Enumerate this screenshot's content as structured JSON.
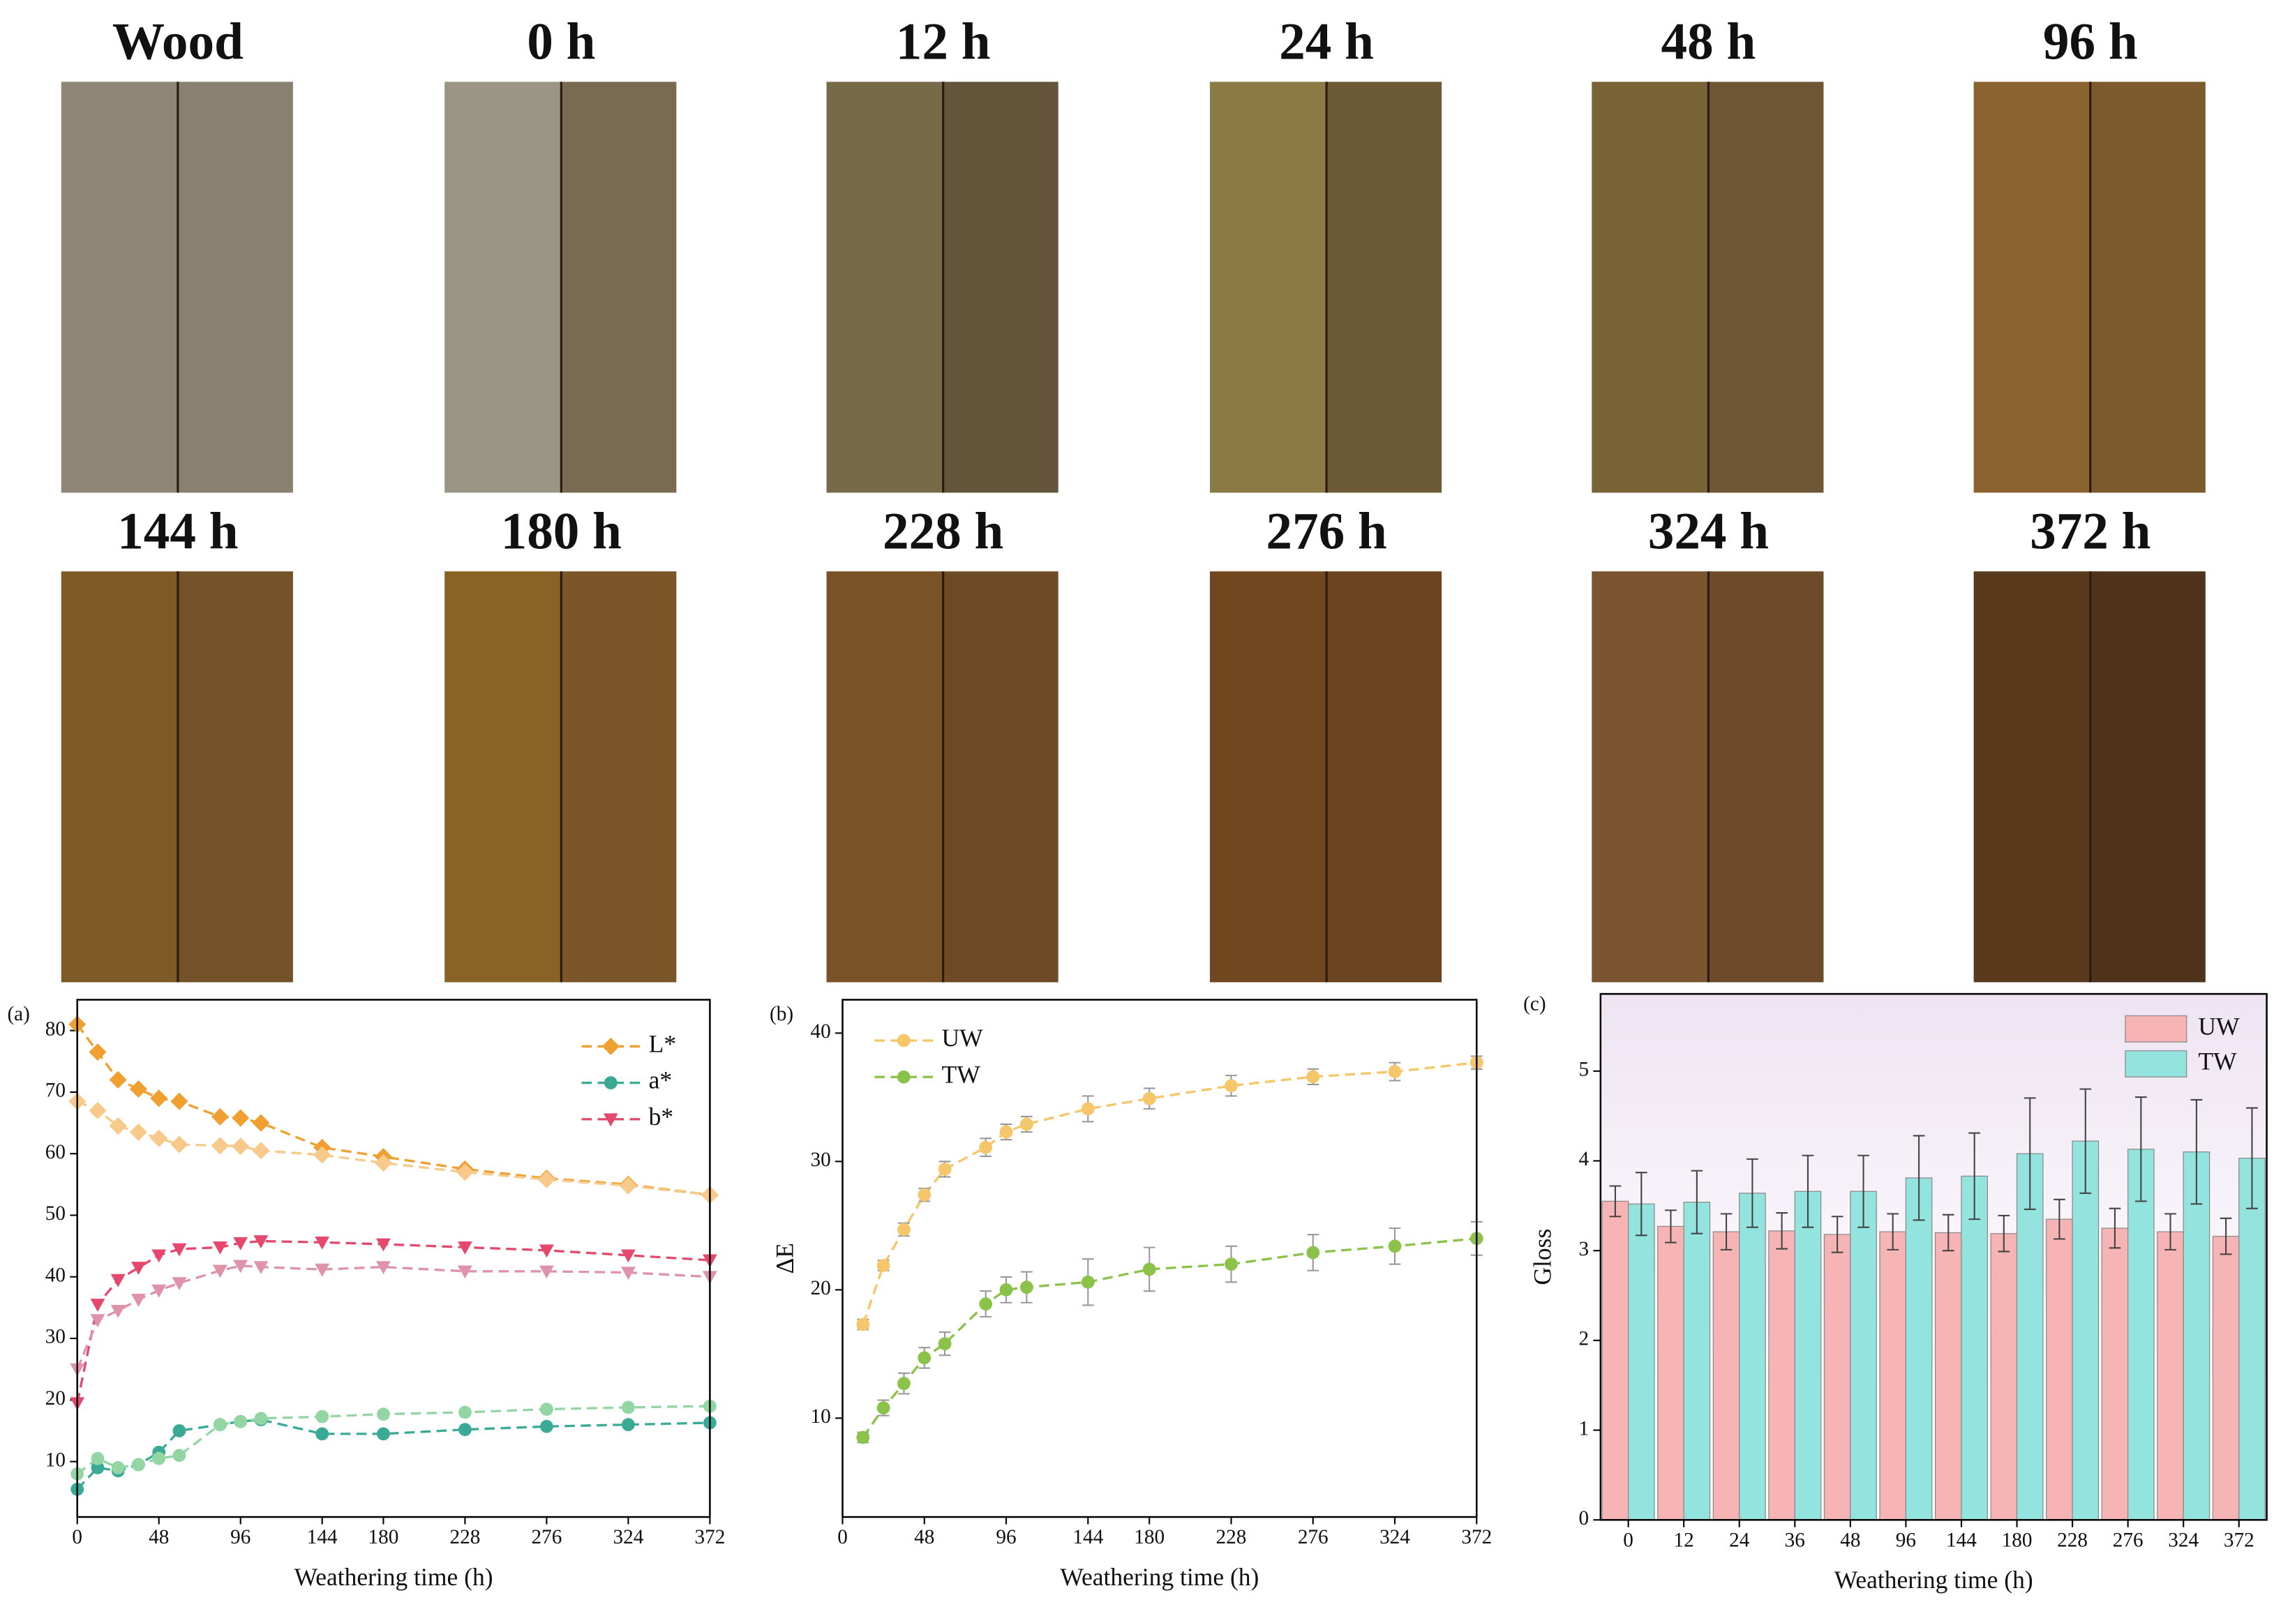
{
  "samples": {
    "labels": [
      "Wood",
      "0 h",
      "12 h",
      "24 h",
      "48 h",
      "96 h",
      "144 h",
      "180 h",
      "228 h",
      "276 h",
      "324 h",
      "372 h"
    ]
  },
  "chart_data": [
    {
      "type": "line",
      "label": "(a)",
      "xlabel": "Weathering time (h)",
      "x": [
        0,
        12,
        24,
        36,
        48,
        60,
        84,
        96,
        108,
        144,
        180,
        228,
        276,
        324,
        372
      ],
      "xlim": [
        0,
        372
      ],
      "xticks": [
        0,
        48,
        96,
        144,
        180,
        228,
        276,
        324,
        372
      ],
      "ylim": [
        1,
        85
      ],
      "yticks": [
        10,
        20,
        30,
        40,
        50,
        60,
        70,
        80
      ],
      "legend": "upper right",
      "series": [
        {
          "name": "L*",
          "color": "#f0a030",
          "marker": "diamond",
          "values": [
            81,
            76.5,
            72,
            70.5,
            69,
            68.5,
            66,
            65.8,
            65,
            61,
            59.5,
            57.5,
            56,
            55,
            53.3
          ]
        },
        {
          "name": "a*",
          "color": "#3aaa96",
          "marker": "circle",
          "values": [
            5.5,
            9,
            8.5,
            9.5,
            11.5,
            15,
            16,
            16.5,
            16.8,
            14.5,
            14.5,
            15.2,
            15.7,
            16,
            16.3
          ]
        },
        {
          "name": "b*",
          "color": "#e4486c",
          "marker": "triangle",
          "values": [
            19.5,
            35.5,
            39.5,
            41.5,
            43.5,
            44.5,
            44.8,
            45.5,
            45.8,
            45.6,
            45.3,
            44.8,
            44.3,
            43.5,
            42.7
          ]
        },
        {
          "color": "#f7c98a",
          "marker": "diamond",
          "values": [
            68.5,
            67,
            64.5,
            63.5,
            62.5,
            61.5,
            61.3,
            61.2,
            60.5,
            59.8,
            58.5,
            57,
            55.8,
            54.8,
            53.3
          ]
        },
        {
          "color": "#93d6a4",
          "marker": "circle",
          "values": [
            8,
            10.5,
            9,
            9.5,
            10.5,
            11,
            16,
            16.5,
            17,
            17.3,
            17.7,
            18,
            18.5,
            18.8,
            19
          ]
        },
        {
          "color": "#de93a8",
          "marker": "triangle",
          "values": [
            25,
            33,
            34.5,
            36.3,
            37.8,
            39,
            41,
            41.8,
            41.6,
            41.2,
            41.6,
            40.9,
            40.9,
            40.7,
            40
          ]
        }
      ]
    },
    {
      "type": "line",
      "label": "(b)",
      "xlabel": "Weathering time (h)",
      "ylabel": "ΔE",
      "x": [
        12,
        24,
        36,
        48,
        60,
        84,
        96,
        108,
        144,
        180,
        228,
        276,
        324,
        372
      ],
      "xlim": [
        0,
        372
      ],
      "xticks": [
        0,
        48,
        96,
        144,
        180,
        228,
        276,
        324,
        372
      ],
      "ylim": [
        2.3,
        42.6
      ],
      "yticks": [
        10,
        20,
        30,
        40
      ],
      "legend": "upper left",
      "series": [
        {
          "name": "UW",
          "color": "#f5c66a",
          "marker": "circle",
          "values": [
            17.3,
            21.9,
            24.7,
            27.4,
            29.4,
            31.1,
            32.3,
            32.9,
            34.1,
            34.9,
            35.9,
            36.6,
            37.0,
            37.7
          ],
          "errors": [
            0.4,
            0.4,
            0.5,
            0.5,
            0.6,
            0.7,
            0.6,
            0.6,
            1.0,
            0.8,
            0.8,
            0.6,
            0.7,
            0.5
          ]
        },
        {
          "name": "TW",
          "color": "#8bc34a",
          "marker": "circle",
          "values": [
            8.5,
            10.8,
            12.7,
            14.7,
            15.8,
            18.9,
            20.0,
            20.2,
            20.6,
            21.6,
            22.0,
            22.9,
            23.4,
            24.0
          ],
          "errors": [
            0.4,
            0.6,
            0.8,
            0.8,
            0.9,
            1.0,
            1.0,
            1.2,
            1.8,
            1.7,
            1.4,
            1.4,
            1.4,
            1.3
          ]
        }
      ]
    },
    {
      "type": "bar",
      "label": "(c)",
      "xlabel": "Weathering time (h)",
      "ylabel": "Gloss",
      "categories": [
        "0",
        "12",
        "24",
        "36",
        "48",
        "96",
        "144",
        "180",
        "228",
        "276",
        "324",
        "372"
      ],
      "ylim": [
        0,
        5.86
      ],
      "yticks": [
        0,
        1,
        2,
        3,
        4,
        5
      ],
      "legend": "upper right",
      "series": [
        {
          "name": "UW",
          "color": "#f7b4b4",
          "values": [
            3.55,
            3.27,
            3.21,
            3.22,
            3.18,
            3.21,
            3.2,
            3.19,
            3.35,
            3.25,
            3.21,
            3.16
          ],
          "errors": [
            0.17,
            0.18,
            0.2,
            0.2,
            0.2,
            0.2,
            0.2,
            0.2,
            0.22,
            0.22,
            0.2,
            0.2
          ]
        },
        {
          "name": "TW",
          "color": "#93e3df",
          "values": [
            3.52,
            3.54,
            3.64,
            3.66,
            3.66,
            3.81,
            3.83,
            4.08,
            4.22,
            4.13,
            4.1,
            4.03
          ],
          "errors": [
            0.35,
            0.35,
            0.38,
            0.4,
            0.4,
            0.47,
            0.48,
            0.62,
            0.58,
            0.58,
            0.58,
            0.56
          ]
        }
      ]
    }
  ]
}
